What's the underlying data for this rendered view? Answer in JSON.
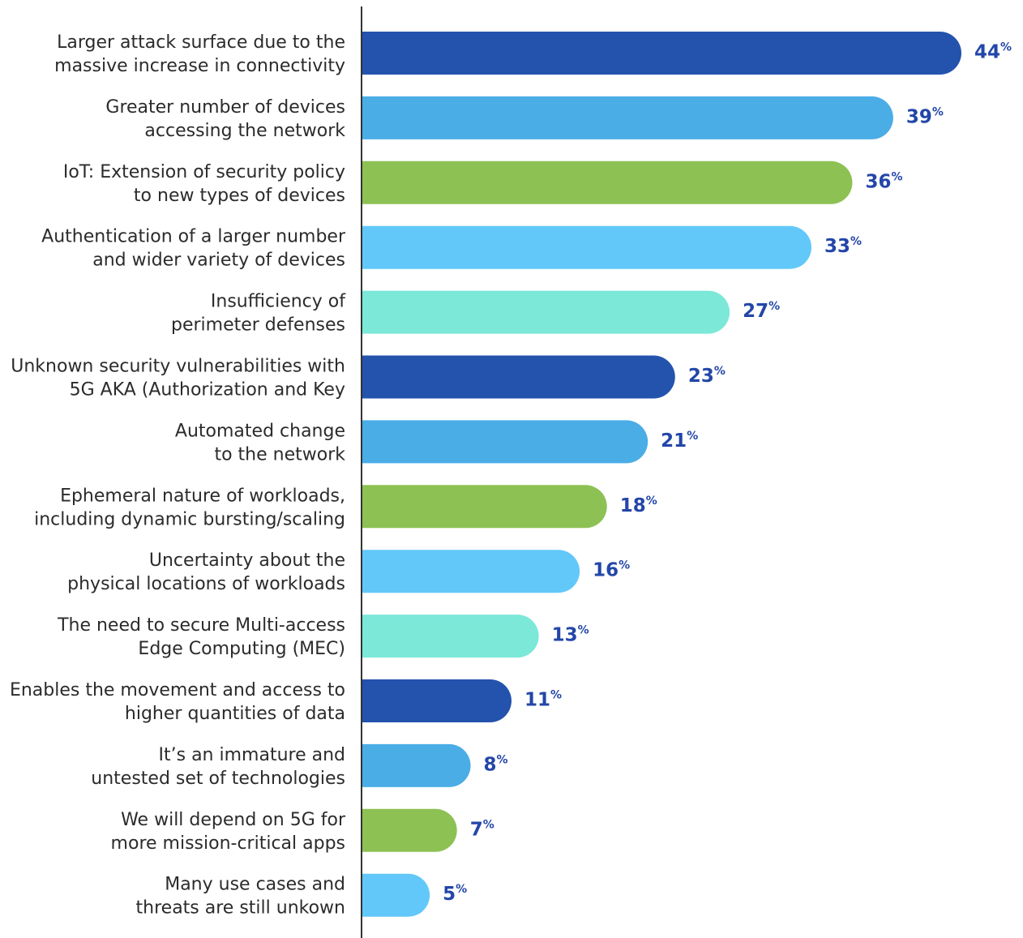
{
  "chart_data": {
    "type": "bar",
    "orientation": "horizontal",
    "title": "",
    "xlabel": "",
    "ylabel": "",
    "xlim": [
      0,
      44
    ],
    "grid": false,
    "legend": "none",
    "value_suffix": "%",
    "label_color": "#2b2b2b",
    "value_label_color": "#2346a8",
    "axis_color": "#333333",
    "categories": [
      [
        "Larger attack surface due to the",
        "massive increase in connectivity"
      ],
      [
        "Greater number of devices",
        "accessing the network"
      ],
      [
        "IoT: Extension of security policy",
        "to new types of devices"
      ],
      [
        "Authentication of a larger number",
        "and wider variety of devices"
      ],
      [
        "Insufficiency of",
        "perimeter defenses"
      ],
      [
        "Unknown security vulnerabilities with",
        "5G AKA (Authorization and Key"
      ],
      [
        "Automated change",
        "to the network"
      ],
      [
        "Ephemeral nature of workloads,",
        "including dynamic bursting/scaling"
      ],
      [
        "Uncertainty about the",
        "physical locations of workloads"
      ],
      [
        "The need to secure Multi-access",
        "Edge Computing (MEC)"
      ],
      [
        "Enables the movement and access to",
        "higher quantities of data"
      ],
      [
        "It’s an immature and",
        "untested set of technologies"
      ],
      [
        "We will depend on 5G for",
        "more mission-critical apps"
      ],
      [
        "Many use cases and",
        "threats are still unkown"
      ]
    ],
    "values": [
      44,
      39,
      36,
      33,
      27,
      23,
      21,
      18,
      16,
      13,
      11,
      8,
      7,
      5
    ],
    "bar_colors": [
      "#2353ad",
      "#4aade6",
      "#8dc153",
      "#62c8f9",
      "#7be8d8",
      "#2353ad",
      "#4aade6",
      "#8dc153",
      "#62c8f9",
      "#7be8d8",
      "#2353ad",
      "#4aade6",
      "#8dc153",
      "#62c8f9"
    ]
  }
}
